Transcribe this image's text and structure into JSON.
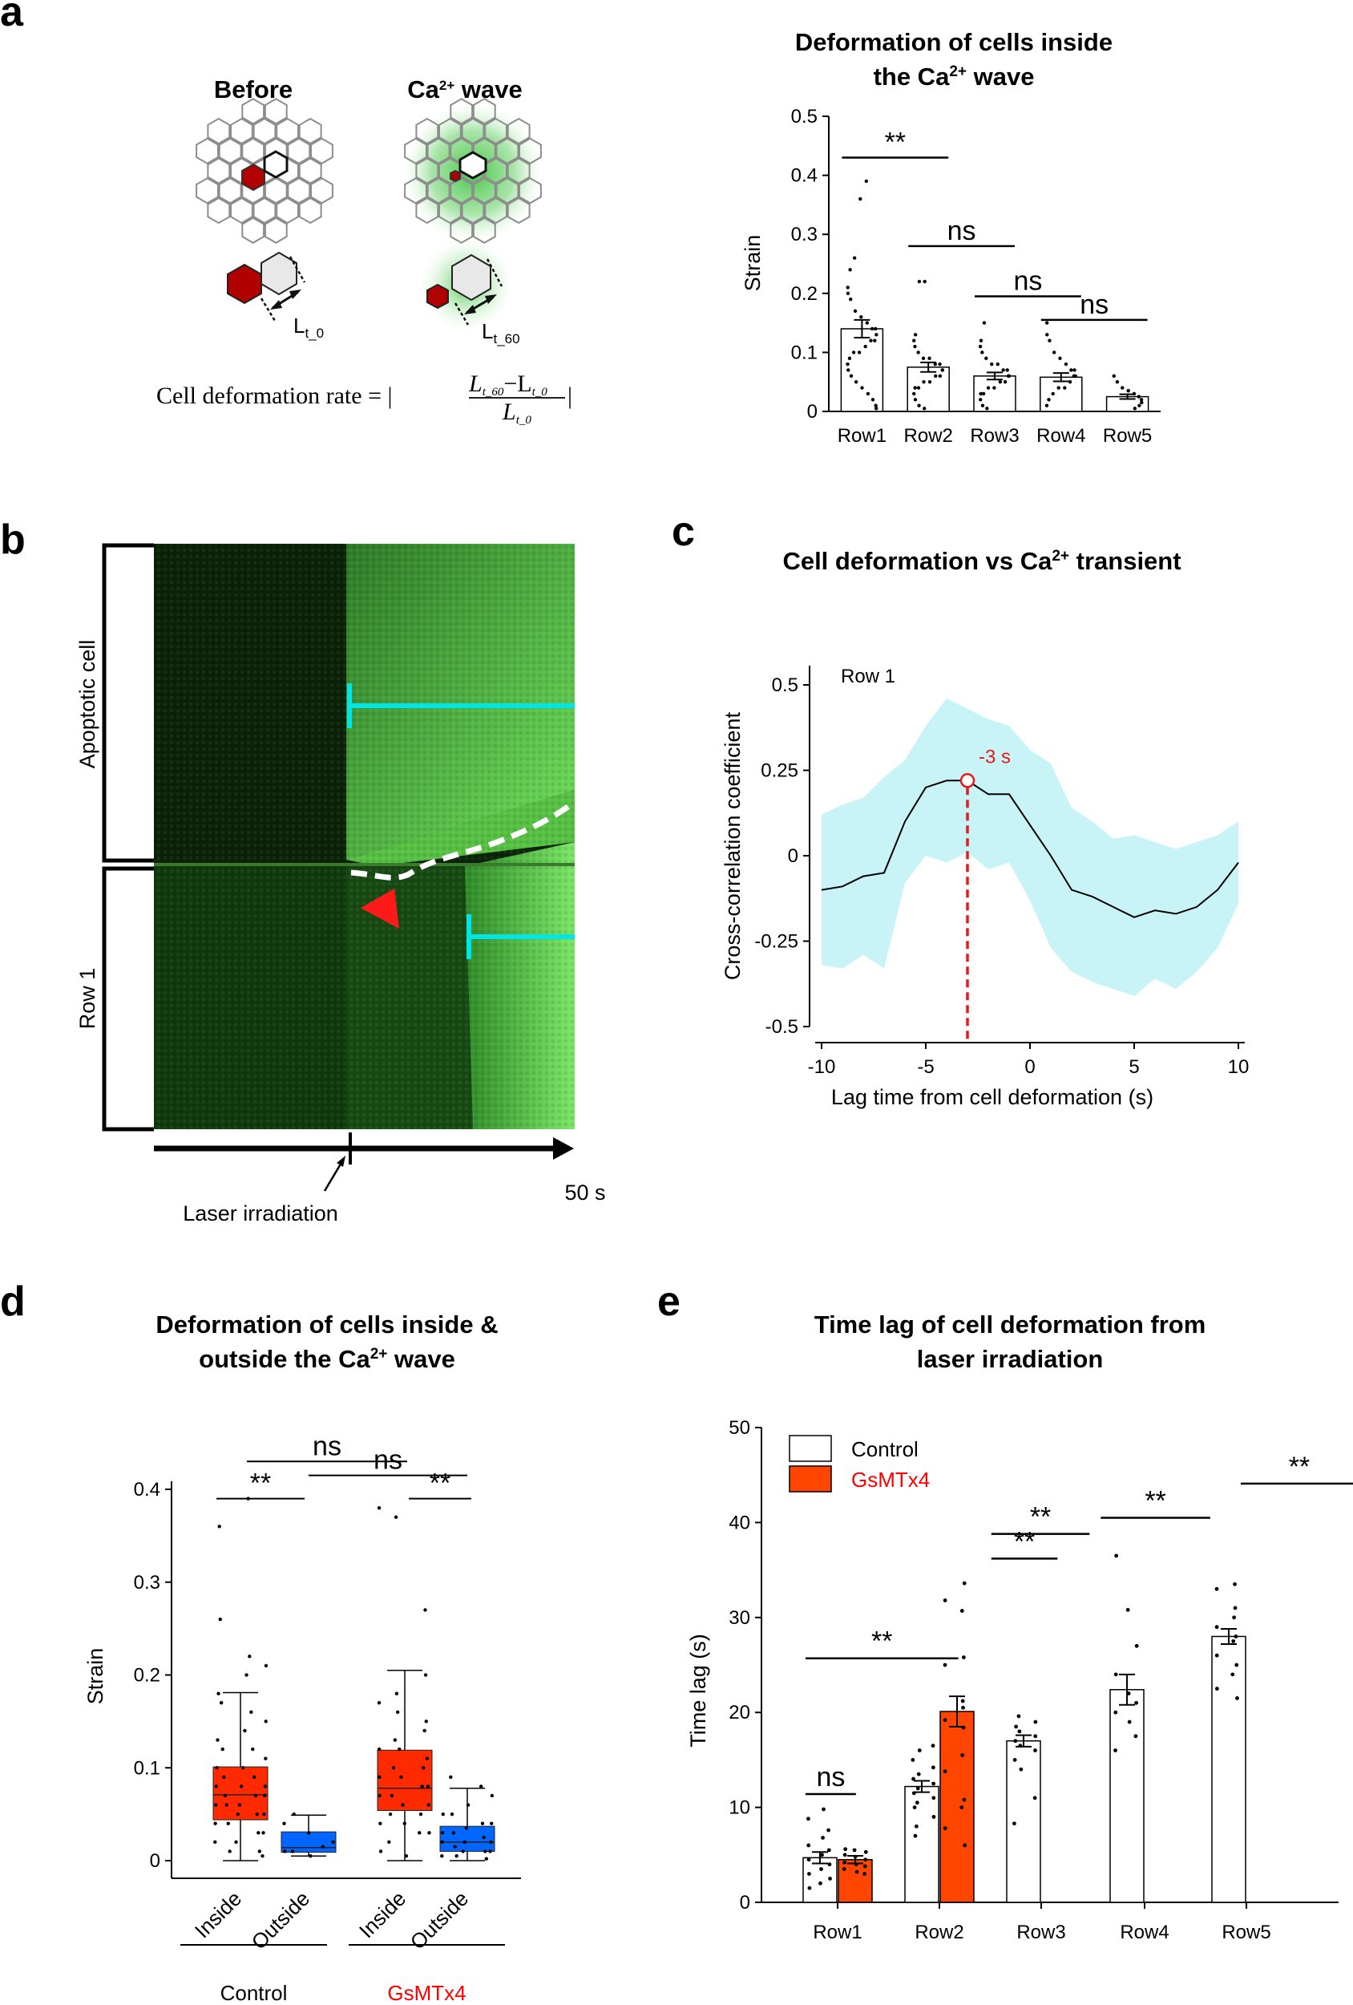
{
  "panels": {
    "a": "a",
    "b": "b",
    "c": "c",
    "d": "d",
    "e": "e"
  },
  "schematic": {
    "before_label": "Before",
    "wave_label": "Ca",
    "wave_sup": "2+",
    "wave_suffix": " wave",
    "l0_main": "L",
    "l0_sub": "t_0",
    "l60_main": "L",
    "l60_sub": "t_60",
    "formula_lhs": "Cell deformation rate = |",
    "formula_num": "L",
    "formula_num_sub1": "t_60",
    "formula_num_mid": "−L",
    "formula_num_sub2": "t_0",
    "formula_den": "L",
    "formula_den_sub": "t_0",
    "formula_end": "|"
  },
  "kymograph": {
    "label_apoptotic": "Apoptotic cell",
    "label_row1": "Row 1",
    "laser_label": "Laser irradiation",
    "time_label": "50 s",
    "colors": {
      "cyan": "#00e5e5",
      "arrow": "#ff1a1a"
    }
  },
  "chart_data": [
    {
      "id": "a",
      "type": "bar",
      "title_line1": "Deformation of  cells inside",
      "title_line2_pre": "the Ca",
      "title_line2_sup": "2+",
      "title_line2_post": " wave",
      "ylabel": "Strain",
      "ylim": [
        0,
        0.5
      ],
      "yticks": [
        0,
        0.1,
        0.2,
        0.3,
        0.4,
        0.5
      ],
      "ytick_labels": [
        "0",
        "0.1",
        "0.2",
        "0.3",
        "0.4",
        "0.5"
      ],
      "categories": [
        "Row1",
        "Row2",
        "Row3",
        "Row4",
        "Row5"
      ],
      "values": [
        0.14,
        0.075,
        0.06,
        0.058,
        0.025
      ],
      "errors": [
        0.015,
        0.008,
        0.006,
        0.007,
        0.004
      ],
      "points": [
        [
          0.39,
          0.36,
          0.26,
          0.24,
          0.21,
          0.2,
          0.19,
          0.17,
          0.16,
          0.15,
          0.14,
          0.14,
          0.13,
          0.12,
          0.12,
          0.11,
          0.1,
          0.1,
          0.09,
          0.08,
          0.07,
          0.06,
          0.05,
          0.04,
          0.03,
          0.02,
          0.01,
          0.005
        ],
        [
          0.22,
          0.22,
          0.13,
          0.12,
          0.11,
          0.1,
          0.09,
          0.09,
          0.08,
          0.08,
          0.07,
          0.07,
          0.06,
          0.06,
          0.05,
          0.05,
          0.04,
          0.04,
          0.03,
          0.02,
          0.01,
          0.005
        ],
        [
          0.15,
          0.12,
          0.11,
          0.1,
          0.09,
          0.08,
          0.08,
          0.07,
          0.07,
          0.06,
          0.06,
          0.05,
          0.05,
          0.04,
          0.04,
          0.03,
          0.03,
          0.02,
          0.01,
          0.005
        ],
        [
          0.15,
          0.13,
          0.12,
          0.1,
          0.09,
          0.08,
          0.07,
          0.07,
          0.06,
          0.06,
          0.05,
          0.04,
          0.04,
          0.03,
          0.02,
          0.01
        ],
        [
          0.06,
          0.05,
          0.04,
          0.035,
          0.03,
          0.025,
          0.02,
          0.015,
          0.01,
          0.005
        ]
      ],
      "significance": [
        {
          "from": 0,
          "to": 1,
          "y": 0.43,
          "label": "**"
        },
        {
          "from": 1,
          "to": 2,
          "y": 0.28,
          "label": "ns"
        },
        {
          "from": 2,
          "to": 3,
          "y": 0.195,
          "label": "ns"
        },
        {
          "from": 3,
          "to": 4,
          "y": 0.155,
          "label": "ns"
        }
      ]
    },
    {
      "id": "c",
      "type": "line",
      "title_pre": "Cell deformation vs Ca",
      "title_sup": "2+",
      "title_post": " transient",
      "inset_label": "Row 1",
      "xlabel": "Lag time from cell deformation (s)",
      "ylabel": "Cross-correlation coefficient",
      "xlim": [
        -10,
        10
      ],
      "ylim": [
        -0.5,
        0.5
      ],
      "xticks": [
        -10,
        -5,
        0,
        5,
        10
      ],
      "xtick_labels": [
        "-10",
        "-5",
        "0",
        "5",
        "10"
      ],
      "yticks": [
        -0.5,
        -0.25,
        0,
        0.25,
        0.5
      ],
      "ytick_labels": [
        "-0.5",
        "-0.25",
        "0",
        "0.25",
        "0.5"
      ],
      "x": [
        -10,
        -9,
        -8,
        -7,
        -6,
        -5,
        -4,
        -3,
        -2,
        -1,
        0,
        1,
        2,
        3,
        4,
        5,
        6,
        7,
        8,
        9,
        10
      ],
      "mean": [
        -0.1,
        -0.09,
        -0.06,
        -0.05,
        0.1,
        0.2,
        0.22,
        0.22,
        0.18,
        0.18,
        0.09,
        0.0,
        -0.1,
        -0.12,
        -0.15,
        -0.18,
        -0.16,
        -0.17,
        -0.15,
        -0.1,
        -0.02
      ],
      "upper": [
        0.12,
        0.15,
        0.17,
        0.23,
        0.28,
        0.38,
        0.46,
        0.43,
        0.4,
        0.38,
        0.31,
        0.27,
        0.14,
        0.1,
        0.05,
        0.06,
        0.04,
        0.02,
        0.04,
        0.06,
        0.1
      ],
      "lower": [
        -0.32,
        -0.33,
        -0.29,
        -0.33,
        -0.08,
        0.0,
        -0.02,
        0.01,
        -0.04,
        -0.02,
        -0.13,
        -0.27,
        -0.34,
        -0.37,
        -0.39,
        -0.41,
        -0.36,
        -0.39,
        -0.34,
        -0.27,
        -0.14
      ],
      "peak_x": -3,
      "peak_label": "-3 s",
      "colors": {
        "band": "#c8f4f8",
        "peak": "#e41a1c"
      }
    },
    {
      "id": "d",
      "type": "box",
      "title_line1": "Deformation of cells inside &",
      "title_line2_pre": "outside the Ca",
      "title_line2_sup": "2+",
      "title_line2_post": " wave",
      "ylabel": "Strain",
      "ylim": [
        0,
        0.4
      ],
      "yticks": [
        0,
        0.1,
        0.2,
        0.3,
        0.4
      ],
      "ytick_labels": [
        "0",
        "0.1",
        "0.2",
        "0.3",
        "0.4"
      ],
      "categories": [
        "Inside",
        "Outside",
        "Inside",
        "Outside"
      ],
      "groups": [
        {
          "label": "Control",
          "color": "#000000"
        },
        {
          "label": "GsMTx4",
          "color": "#ff0000"
        }
      ],
      "boxes": [
        {
          "min": 0,
          "q1": 0.044,
          "median": 0.071,
          "q3": 0.101,
          "max": 0.181,
          "color": "#ff2a00"
        },
        {
          "min": 0.005,
          "q1": 0.009,
          "median": 0.014,
          "q3": 0.031,
          "max": 0.049,
          "color": "#0066ff"
        },
        {
          "min": 0,
          "q1": 0.054,
          "median": 0.078,
          "q3": 0.119,
          "max": 0.205,
          "color": "#ff2a00"
        },
        {
          "min": 0,
          "q1": 0.01,
          "median": 0.02,
          "q3": 0.037,
          "max": 0.078,
          "color": "#0066ff"
        }
      ],
      "points": [
        [
          0.39,
          0.36,
          0.26,
          0.22,
          0.21,
          0.2,
          0.18,
          0.17,
          0.16,
          0.15,
          0.14,
          0.13,
          0.12,
          0.12,
          0.11,
          0.1,
          0.1,
          0.09,
          0.09,
          0.08,
          0.08,
          0.08,
          0.07,
          0.07,
          0.07,
          0.06,
          0.06,
          0.06,
          0.05,
          0.05,
          0.05,
          0.04,
          0.04,
          0.03,
          0.03,
          0.02,
          0.02,
          0.01,
          0.01,
          0.005
        ],
        [
          0.05,
          0.04,
          0.03,
          0.02,
          0.015,
          0.01,
          0.01,
          0.005
        ],
        [
          0.38,
          0.37,
          0.27,
          0.2,
          0.18,
          0.17,
          0.16,
          0.15,
          0.14,
          0.13,
          0.12,
          0.12,
          0.11,
          0.1,
          0.1,
          0.09,
          0.09,
          0.08,
          0.08,
          0.07,
          0.07,
          0.06,
          0.06,
          0.05,
          0.05,
          0.04,
          0.04,
          0.03,
          0.03,
          0.02,
          0.01,
          0.005
        ],
        [
          0.09,
          0.08,
          0.07,
          0.06,
          0.05,
          0.05,
          0.04,
          0.04,
          0.035,
          0.03,
          0.03,
          0.025,
          0.02,
          0.02,
          0.02,
          0.015,
          0.01,
          0.01,
          0.01,
          0.005,
          0.005,
          0.002
        ]
      ],
      "significance": [
        {
          "from": 0,
          "to": 2,
          "y": 0.43,
          "label": "ns"
        },
        {
          "from": 1,
          "to": 3,
          "y": 0.415,
          "label": "ns"
        },
        {
          "from": 0,
          "to": 1,
          "y": 0.39,
          "label": "**"
        },
        {
          "from": 2,
          "to": 3,
          "y": 0.39,
          "label": "**"
        }
      ]
    },
    {
      "id": "e",
      "type": "bar",
      "title_line1": "Time lag of cell deformation from",
      "title_line2": "laser irradiation",
      "ylabel": "Time lag (s)",
      "ylim": [
        0,
        50
      ],
      "yticks": [
        0,
        10,
        20,
        30,
        40,
        50
      ],
      "ytick_labels": [
        "0",
        "10",
        "20",
        "30",
        "40",
        "50"
      ],
      "categories": [
        "Row1",
        "Row2",
        "Row3",
        "Row4",
        "Row5"
      ],
      "series": [
        {
          "name": "Control",
          "color": "#ffffff",
          "values": [
            4.7,
            12.2,
            17.0,
            22.4,
            28.0
          ],
          "errors": [
            0.6,
            0.6,
            0.6,
            1.6,
            0.8
          ]
        },
        {
          "name": "GsMTx4",
          "color": "#ff4500",
          "values": [
            4.5,
            20.1,
            null,
            null,
            null
          ],
          "errors": [
            0.4,
            1.6,
            null,
            null,
            null
          ]
        }
      ],
      "points": {
        "Control": [
          [
            9.8,
            8.8,
            7.6,
            6.8,
            6.0,
            5.5,
            5.0,
            4.5,
            4.0,
            3.5,
            3.0,
            2.5,
            2.0,
            1.5
          ],
          [
            16.5,
            16.0,
            15.0,
            14.2,
            13.5,
            13.0,
            12.5,
            12.0,
            11.5,
            11.0,
            10.5,
            10.0,
            9.0,
            8.0,
            7.0
          ],
          [
            19.6,
            19.0,
            18.5,
            18.0,
            17.5,
            17.0,
            16.5,
            16.0,
            15.0,
            14.0,
            11.0,
            8.3
          ],
          [
            36.5,
            30.8,
            27.0,
            24.0,
            22.0,
            21.0,
            20.0,
            19.0,
            17.5,
            16.0
          ],
          [
            33.5,
            33.0,
            31.0,
            30.0,
            29.0,
            28.0,
            27.5,
            26.0,
            25.0,
            24.0,
            22.5,
            21.5
          ]
        ],
        "GsMTx4": [
          [
            5.6,
            5.5,
            5.3,
            5.0,
            4.8,
            4.5,
            4.2,
            4.0,
            3.8,
            3.5,
            3.2,
            3.0
          ],
          [
            33.6,
            31.8,
            30.7,
            25.8,
            25.0,
            21.2,
            20.5,
            19.2,
            18.4,
            15.5,
            13.8,
            10.8,
            10.0,
            7.8,
            6.0
          ]
        ]
      },
      "significance": [
        {
          "x1": 0,
          "x2": 0.99,
          "y": 11.4,
          "label": "ns"
        },
        {
          "x1": 0,
          "x2": 3.0,
          "y": 25.7,
          "label": "**"
        },
        {
          "x1": 3.65,
          "x2": 4.95,
          "y": 36.2,
          "label": "**"
        },
        {
          "x1": 3.65,
          "x2": 5.58,
          "y": 38.8,
          "label": "**"
        },
        {
          "x1": 5.8,
          "x2": 7.95,
          "y": 40.5,
          "label": "**"
        },
        {
          "x1": 8.55,
          "x2": 10.85,
          "y": 44.1,
          "label": "**"
        }
      ]
    }
  ]
}
